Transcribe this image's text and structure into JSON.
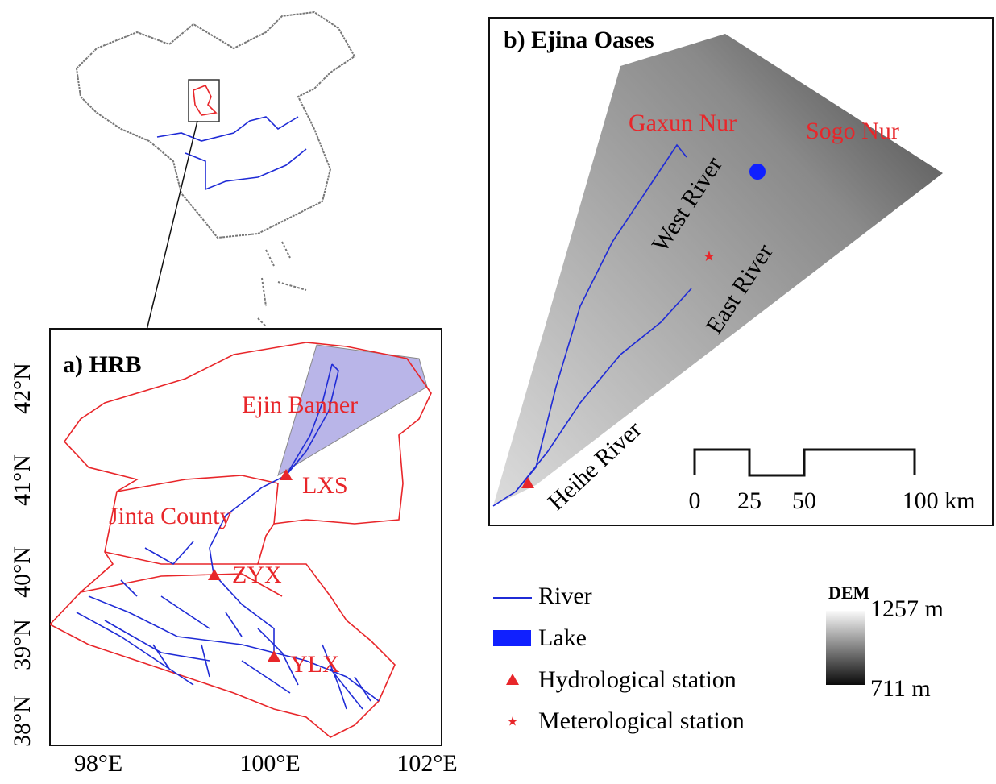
{
  "panel_a": {
    "title": "a) HRB",
    "region_labels": [
      "Ejin Banner",
      "Jinta County"
    ],
    "stations": [
      "LXS",
      "ZYX",
      "YLX"
    ],
    "x_ticks": [
      "98°E",
      "100°E",
      "102°E"
    ],
    "y_ticks": [
      "38°N",
      "39°N",
      "40°N",
      "41°N",
      "42°N"
    ]
  },
  "panel_b": {
    "title": "b) Ejina Oases",
    "lake_labels": [
      "Gaxun Nur",
      "Sogo Nur"
    ],
    "river_labels": [
      "West River",
      "East River",
      "Heihe River"
    ],
    "scale_labels": [
      "0",
      "25",
      "50",
      "100 km"
    ]
  },
  "legend": {
    "items": [
      "River",
      "Lake",
      "Hydrological station",
      "Meterological station"
    ],
    "dem_title": "DEM",
    "dem_max": "1257 m",
    "dem_min": "711 m"
  }
}
